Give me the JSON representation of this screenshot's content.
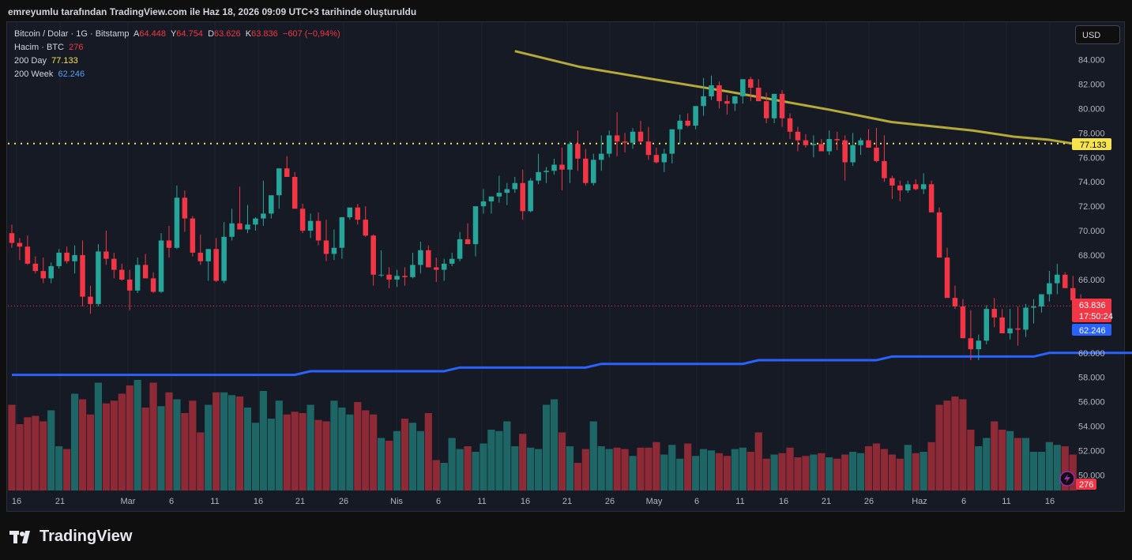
{
  "header": {
    "text": "emreyumlu tarafından TradingView.com ile Haz 18, 2026 09:09 UTC+3 tarihinde oluşturuldu"
  },
  "legend": {
    "symbol": "Bitcoin / Dolar · 1G · Bitstamp",
    "o_label": "A",
    "o_value": "64.448",
    "h_label": "Y",
    "h_value": "64.754",
    "l_label": "D",
    "l_value": "63.626",
    "c_label": "K",
    "c_value": "63.836",
    "change": "−607 (−0,94%)",
    "volume_label": "Hacim · BTC",
    "volume_value": "276",
    "ma1_label": "200 Day",
    "ma1_value": "77.133",
    "ma2_label": "200 Week",
    "ma2_value": "62.246"
  },
  "currency_button": "USD",
  "footer": {
    "brand": "TradingView"
  },
  "colors": {
    "up": "#26a69a",
    "down": "#f23645",
    "ma200d": "#b5a93a",
    "ma200w": "#2962ff",
    "bg": "#161a25"
  },
  "chart_data": {
    "type": "candlestick",
    "symbol": "BTC/USD",
    "y_range": [
      48800,
      86500
    ],
    "y_ticks": [
      "84.000",
      "82.000",
      "80.000",
      "78.000",
      "76.000",
      "74.000",
      "72.000",
      "70.000",
      "68.000",
      "66.000",
      "64.000",
      "62.000",
      "60.000",
      "58.000",
      "56.000",
      "54.000",
      "52.000",
      "50.000"
    ],
    "x_ticks": [
      "16",
      "21",
      "Mar",
      "6",
      "11",
      "16",
      "21",
      "26",
      "Nis",
      "6",
      "11",
      "16",
      "21",
      "26",
      "May",
      "6",
      "11",
      "16",
      "21",
      "26",
      "Haz",
      "6",
      "11",
      "16"
    ],
    "price_labels": {
      "ma200d": "77.133",
      "last": "63.836",
      "countdown": "17:50:24",
      "ma200w": "62.246",
      "volume": "276"
    },
    "candles": [
      [
        69.8,
        70.5,
        68.6,
        69.0
      ],
      [
        69.0,
        69.4,
        67.6,
        68.7
      ],
      [
        68.7,
        69.6,
        67.2,
        67.3
      ],
      [
        67.3,
        67.9,
        66.5,
        66.7
      ],
      [
        66.7,
        67.8,
        65.7,
        66.1
      ],
      [
        66.1,
        67.4,
        65.7,
        67.1
      ],
      [
        67.1,
        68.5,
        66.9,
        68.2
      ],
      [
        68.2,
        68.7,
        67.3,
        67.5
      ],
      [
        67.5,
        68.8,
        66.5,
        68.0
      ],
      [
        68.0,
        69.2,
        63.8,
        64.6
      ],
      [
        64.6,
        65.5,
        63.2,
        64.0
      ],
      [
        64.0,
        68.9,
        63.8,
        68.3
      ],
      [
        68.3,
        70.0,
        67.2,
        67.7
      ],
      [
        67.7,
        68.2,
        66.1,
        66.8
      ],
      [
        66.8,
        67.3,
        65.9,
        66.0
      ],
      [
        66.0,
        66.8,
        63.5,
        65.1
      ],
      [
        65.1,
        67.8,
        64.9,
        67.2
      ],
      [
        67.2,
        68.1,
        66.5,
        66.1
      ],
      [
        66.1,
        66.6,
        64.9,
        65.0
      ],
      [
        65.0,
        69.8,
        64.9,
        69.2
      ],
      [
        69.2,
        70.4,
        67.8,
        68.6
      ],
      [
        68.6,
        73.7,
        68.5,
        72.7
      ],
      [
        72.7,
        73.3,
        69.9,
        71.0
      ],
      [
        71.0,
        71.2,
        67.9,
        68.2
      ],
      [
        68.2,
        69.7,
        67.2,
        67.5
      ],
      [
        67.5,
        68.4,
        65.9,
        68.5
      ],
      [
        68.5,
        69.4,
        65.8,
        65.9
      ],
      [
        65.9,
        70.7,
        65.7,
        69.5
      ],
      [
        69.5,
        71.8,
        69.2,
        70.6
      ],
      [
        70.6,
        73.6,
        70.2,
        70.1
      ],
      [
        70.1,
        72.1,
        69.8,
        70.5
      ],
      [
        70.5,
        71.1,
        70.0,
        71.0
      ],
      [
        71.0,
        74.1,
        70.4,
        71.4
      ],
      [
        71.4,
        71.7,
        71.0,
        72.9
      ],
      [
        72.9,
        73.4,
        71.8,
        75.1
      ],
      [
        75.1,
        76.1,
        74.9,
        74.4
      ],
      [
        74.4,
        74.8,
        71.9,
        71.8
      ],
      [
        71.8,
        72.2,
        69.8,
        70.0
      ],
      [
        70.0,
        71.4,
        69.4,
        70.8
      ],
      [
        70.8,
        71.5,
        68.8,
        69.2
      ],
      [
        69.2,
        70.9,
        67.5,
        68.1
      ],
      [
        68.1,
        70.1,
        67.6,
        68.6
      ],
      [
        68.6,
        71.1,
        67.7,
        71.1
      ],
      [
        71.1,
        71.3,
        70.9,
        71.9
      ],
      [
        71.9,
        72.2,
        70.5,
        70.9
      ],
      [
        70.9,
        72.0,
        69.5,
        69.6
      ],
      [
        69.6,
        69.7,
        65.5,
        66.4
      ],
      [
        66.4,
        68.4,
        66.2,
        66.4
      ],
      [
        66.4,
        67.0,
        65.3,
        66.0
      ],
      [
        66.0,
        66.8,
        65.4,
        66.3
      ],
      [
        66.3,
        67.0,
        65.5,
        66.2
      ],
      [
        66.2,
        68.2,
        66.1,
        67.2
      ],
      [
        67.2,
        69.1,
        66.5,
        68.4
      ],
      [
        68.4,
        68.8,
        67.7,
        67.0
      ],
      [
        67.0,
        67.8,
        65.8,
        66.8
      ],
      [
        66.8,
        67.7,
        65.9,
        67.3
      ],
      [
        67.3,
        68.2,
        67.1,
        67.7
      ],
      [
        67.7,
        69.9,
        67.5,
        69.3
      ],
      [
        69.3,
        70.6,
        68.9,
        68.9
      ],
      [
        68.9,
        70.2,
        67.9,
        72.0
      ],
      [
        72.0,
        73.4,
        71.4,
        72.4
      ],
      [
        72.4,
        72.8,
        71.4,
        72.8
      ],
      [
        72.8,
        74.5,
        72.3,
        73.1
      ],
      [
        73.1,
        73.9,
        72.1,
        73.4
      ],
      [
        73.4,
        74.4,
        73.1,
        73.9
      ],
      [
        73.9,
        75.0,
        70.9,
        71.6
      ],
      [
        71.6,
        74.3,
        71.5,
        74.1
      ],
      [
        74.1,
        76.3,
        73.8,
        74.8
      ],
      [
        74.8,
        75.2,
        73.9,
        74.9
      ],
      [
        74.9,
        75.9,
        74.6,
        75.4
      ],
      [
        75.4,
        76.8,
        73.3,
        75.0
      ],
      [
        75.0,
        77.3,
        73.9,
        77.1
      ],
      [
        77.1,
        78.2,
        74.9,
        75.9
      ],
      [
        75.9,
        76.7,
        73.7,
        73.9
      ],
      [
        73.9,
        76.3,
        73.7,
        75.8
      ],
      [
        75.8,
        77.8,
        74.9,
        76.3
      ],
      [
        76.3,
        78.2,
        76.0,
        77.8
      ],
      [
        77.8,
        79.7,
        76.1,
        77.3
      ],
      [
        77.3,
        78.0,
        76.4,
        77.2
      ],
      [
        77.2,
        78.4,
        76.7,
        78.1
      ],
      [
        78.1,
        79.0,
        77.1,
        77.3
      ],
      [
        77.3,
        78.5,
        75.8,
        76.2
      ],
      [
        76.2,
        76.8,
        75.5,
        75.6
      ],
      [
        75.6,
        76.7,
        74.8,
        76.3
      ],
      [
        76.3,
        77.9,
        75.5,
        78.3
      ],
      [
        78.3,
        79.5,
        77.1,
        79.0
      ],
      [
        79.0,
        79.6,
        78.5,
        78.6
      ],
      [
        78.6,
        80.1,
        78.3,
        80.2
      ],
      [
        80.2,
        82.5,
        79.4,
        81.0
      ],
      [
        81.0,
        82.7,
        80.7,
        81.9
      ],
      [
        81.9,
        82.2,
        80.0,
        80.6
      ],
      [
        80.6,
        81.1,
        79.5,
        80.4
      ],
      [
        80.4,
        81.0,
        79.8,
        81.0
      ],
      [
        81.0,
        81.9,
        80.4,
        82.4
      ],
      [
        82.4,
        82.6,
        80.6,
        81.7
      ],
      [
        81.7,
        82.4,
        80.6,
        80.6
      ],
      [
        80.6,
        81.3,
        78.8,
        79.2
      ],
      [
        79.2,
        80.9,
        78.8,
        81.2
      ],
      [
        81.2,
        81.5,
        78.5,
        79.2
      ],
      [
        79.2,
        79.6,
        77.5,
        78.1
      ],
      [
        78.1,
        78.5,
        76.5,
        77.4
      ],
      [
        77.4,
        77.9,
        76.8,
        77.0
      ],
      [
        77.0,
        77.8,
        76.0,
        77.1
      ],
      [
        77.1,
        77.5,
        76.6,
        76.5
      ],
      [
        76.5,
        78.2,
        76.2,
        77.5
      ],
      [
        77.5,
        78.1,
        76.6,
        77.4
      ],
      [
        77.4,
        77.8,
        74.1,
        75.6
      ],
      [
        75.6,
        78.0,
        75.3,
        77.0
      ],
      [
        77.0,
        77.6,
        76.2,
        77.4
      ],
      [
        77.4,
        78.3,
        76.8,
        76.8
      ],
      [
        76.8,
        78.4,
        75.6,
        75.7
      ],
      [
        75.7,
        77.8,
        74.0,
        74.3
      ],
      [
        74.3,
        74.5,
        72.6,
        73.7
      ],
      [
        73.7,
        74.1,
        72.4,
        73.3
      ],
      [
        73.3,
        74.1,
        73.1,
        73.8
      ],
      [
        73.8,
        74.2,
        73.3,
        73.4
      ],
      [
        73.4,
        74.7,
        73.0,
        73.8
      ],
      [
        73.8,
        74.1,
        72.3,
        71.5
      ],
      [
        71.5,
        71.9,
        68.2,
        67.8
      ],
      [
        67.8,
        68.6,
        66.6,
        64.5
      ],
      [
        64.5,
        65.5,
        63.6,
        63.8
      ],
      [
        63.8,
        64.4,
        61.8,
        61.2
      ],
      [
        61.2,
        63.5,
        59.4,
        60.3
      ],
      [
        60.3,
        61.5,
        59.4,
        61.0
      ],
      [
        61.0,
        63.9,
        60.7,
        63.6
      ],
      [
        63.6,
        64.5,
        62.1,
        62.9
      ],
      [
        62.9,
        63.6,
        62.1,
        61.6
      ],
      [
        61.6,
        63.6,
        61.1,
        62.0
      ],
      [
        62.0,
        63.8,
        60.6,
        61.9
      ],
      [
        61.9,
        64.0,
        61.3,
        63.7
      ],
      [
        63.7,
        64.4,
        62.4,
        63.8
      ],
      [
        63.8,
        64.7,
        63.3,
        64.8
      ],
      [
        64.8,
        66.7,
        64.2,
        65.7
      ],
      [
        65.7,
        67.3,
        64.8,
        66.4
      ],
      [
        66.4,
        66.6,
        65.4,
        65.3
      ],
      [
        65.3,
        66.3,
        64.0,
        64.3
      ],
      [
        64.3,
        64.8,
        63.6,
        63.8
      ]
    ],
    "volume": [
      62,
      48,
      53,
      54,
      50,
      58,
      32,
      30,
      70,
      66,
      55,
      78,
      63,
      65,
      70,
      76,
      80,
      60,
      78,
      61,
      71,
      66,
      56,
      65,
      42,
      62,
      71,
      71,
      69,
      68,
      60,
      49,
      72,
      52,
      65,
      55,
      57,
      56,
      62,
      51,
      50,
      65,
      60,
      55,
      64,
      58,
      55,
      38,
      36,
      43,
      52,
      49,
      43,
      56,
      22,
      20,
      38,
      30,
      32,
      28,
      34,
      44,
      43,
      50,
      32,
      41,
      31,
      30,
      62,
      66,
      42,
      32,
      20,
      30,
      50,
      32,
      30,
      31,
      30,
      25,
      31,
      31,
      35,
      26,
      33,
      23,
      34,
      25,
      30,
      29,
      27,
      25,
      30,
      31,
      28,
      42,
      23,
      26,
      27,
      31,
      24,
      25,
      26,
      27,
      24,
      23,
      26,
      28,
      27,
      32,
      34,
      30,
      26,
      23,
      33,
      27,
      28,
      35,
      62,
      65,
      68,
      66,
      44,
      32,
      38,
      50,
      44,
      43,
      38,
      38,
      28,
      28,
      35,
      33,
      32,
      26
    ],
    "ma200d": [
      [
        56,
        84.7
      ],
      [
        88,
        83.4
      ],
      [
        120,
        82.5
      ],
      [
        160,
        81.4
      ],
      [
        210,
        79.9
      ],
      [
        240,
        78.9
      ],
      [
        280,
        78.2
      ],
      [
        300,
        77.7
      ],
      [
        317,
        77.45
      ],
      [
        329,
        77.133
      ]
    ],
    "ma200w": [
      [
        0,
        58.2
      ],
      [
        36,
        58.2
      ],
      [
        38,
        58.5
      ],
      [
        55,
        58.5
      ],
      [
        57,
        58.8
      ],
      [
        73,
        58.8
      ],
      [
        75,
        59.1
      ],
      [
        93,
        59.1
      ],
      [
        95,
        59.4
      ],
      [
        110,
        59.4
      ],
      [
        112,
        59.7
      ],
      [
        130,
        59.7
      ],
      [
        132,
        60.0
      ],
      [
        150,
        60.0
      ],
      [
        152,
        60.3
      ],
      [
        170,
        60.3
      ],
      [
        172,
        60.6
      ],
      [
        190,
        60.6
      ],
      [
        192,
        60.9
      ],
      [
        210,
        60.9
      ],
      [
        212,
        61.2
      ],
      [
        230,
        61.2
      ],
      [
        232,
        61.5
      ],
      [
        260,
        61.5
      ],
      [
        262,
        61.8
      ],
      [
        280,
        61.8
      ],
      [
        282,
        62.1
      ],
      [
        320,
        62.1
      ],
      [
        324,
        62.246
      ]
    ]
  }
}
